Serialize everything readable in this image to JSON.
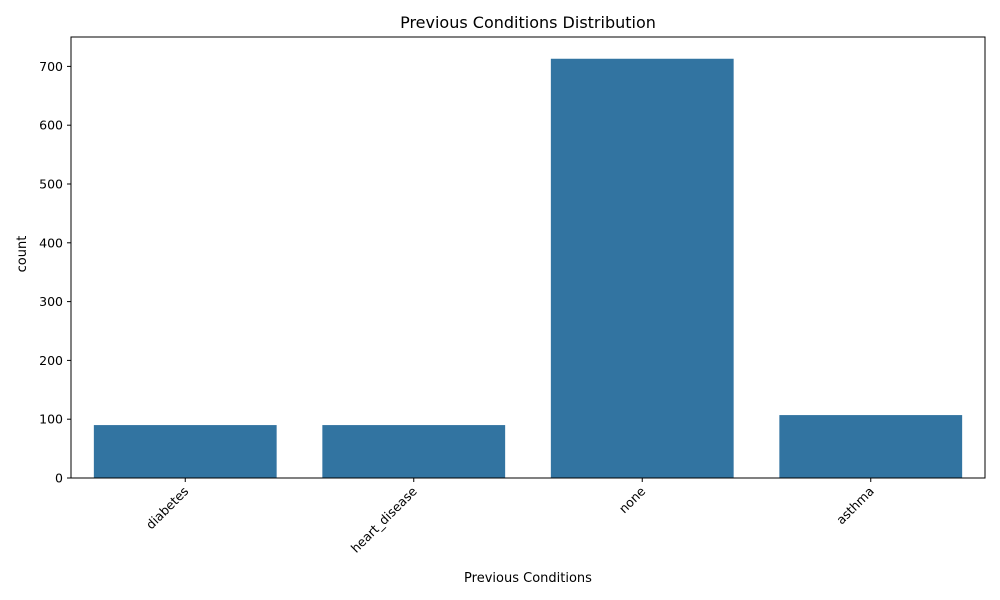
{
  "chart_data": {
    "type": "bar",
    "title": "Previous Conditions Distribution",
    "xlabel": "Previous Conditions",
    "ylabel": "count",
    "categories": [
      "diabetes",
      "heart_disease",
      "none",
      "asthma"
    ],
    "values": [
      90,
      90,
      713,
      107
    ],
    "ylim": [
      0,
      750
    ],
    "yticks": [
      0,
      100,
      200,
      300,
      400,
      500,
      600,
      700
    ],
    "bar_color": "#3274a1",
    "xtick_rotation": 45,
    "grid": false,
    "legend": "none"
  }
}
